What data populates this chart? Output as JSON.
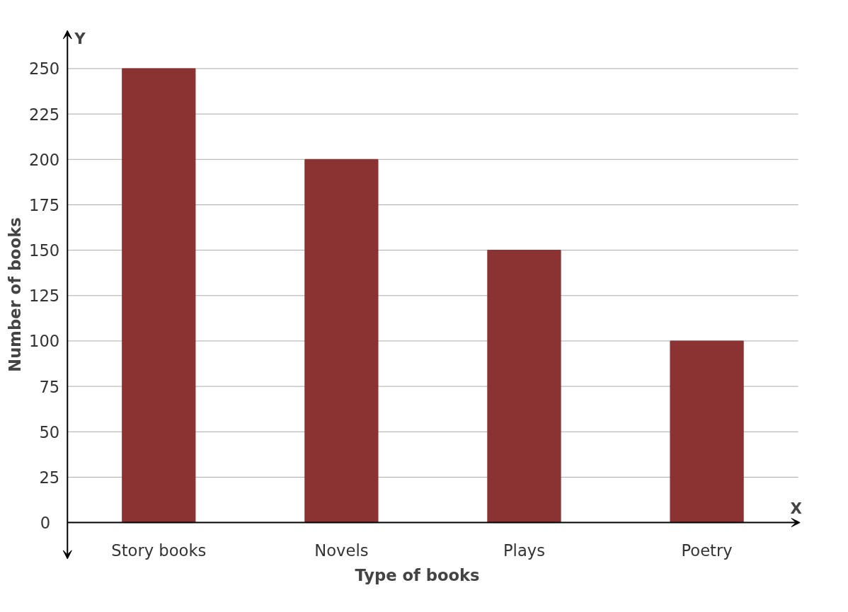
{
  "chart_data": {
    "type": "bar",
    "xlabel": "Type of books",
    "ylabel": "Number of books",
    "categories": [
      "Story books",
      "Novels",
      "Plays",
      "Poetry"
    ],
    "values": [
      250,
      200,
      150,
      100
    ],
    "color": "#8b3333",
    "ylim": [
      -21,
      272
    ],
    "yticks": [
      0,
      25,
      50,
      75,
      100,
      125,
      150,
      175,
      200,
      225,
      250
    ],
    "grid": "y",
    "annotations": [
      "Y",
      "X"
    ]
  }
}
